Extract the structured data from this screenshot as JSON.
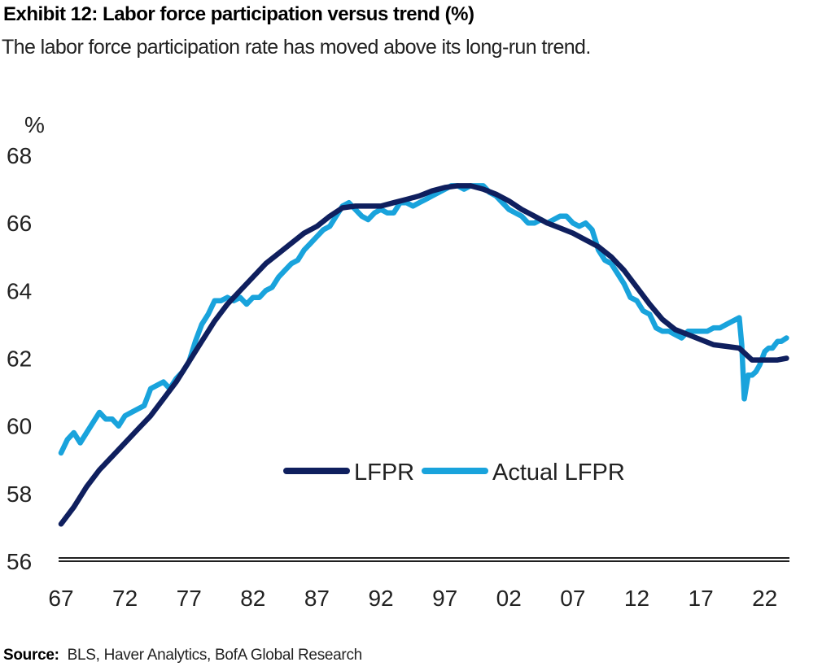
{
  "title": "Exhibit 12: Labor force participation versus trend (%)",
  "subtitle": "The labor force participation rate has moved above its long-run trend.",
  "source_label": "Source:",
  "source_text": "BLS, Haver Analytics, BofA Global Research",
  "colors": {
    "lfpr": "#0f1f5e",
    "actual": "#19a3dc",
    "axis": "#000000"
  },
  "chart_data": {
    "type": "line",
    "title": "Exhibit 12: Labor force participation versus trend (%)",
    "ylabel": "%",
    "xlabel": "",
    "ylim": [
      56,
      68
    ],
    "xlim": [
      1967,
      2023.8
    ],
    "y_ticks": [
      56,
      58,
      60,
      62,
      64,
      66,
      68
    ],
    "x_ticks": [
      {
        "year": 1967,
        "label": "67"
      },
      {
        "year": 1972,
        "label": "72"
      },
      {
        "year": 1977,
        "label": "77"
      },
      {
        "year": 1982,
        "label": "82"
      },
      {
        "year": 1987,
        "label": "87"
      },
      {
        "year": 1992,
        "label": "92"
      },
      {
        "year": 1997,
        "label": "97"
      },
      {
        "year": 2002,
        "label": "02"
      },
      {
        "year": 2007,
        "label": "07"
      },
      {
        "year": 2012,
        "label": "12"
      },
      {
        "year": 2017,
        "label": "17"
      },
      {
        "year": 2022,
        "label": "22"
      }
    ],
    "grid": false,
    "legend_position": "center",
    "series": [
      {
        "name": "LFPR",
        "x": [
          1967,
          1968,
          1969,
          1970,
          1971,
          1972,
          1973,
          1974,
          1975,
          1976,
          1977,
          1978,
          1979,
          1980,
          1981,
          1982,
          1983,
          1984,
          1985,
          1986,
          1987,
          1988,
          1989,
          1990,
          1991,
          1992,
          1993,
          1994,
          1995,
          1996,
          1997,
          1998,
          1999,
          2000,
          2001,
          2002,
          2003,
          2004,
          2005,
          2006,
          2007,
          2008,
          2009,
          2010,
          2011,
          2012,
          2013,
          2014,
          2015,
          2016,
          2017,
          2018,
          2019,
          2020,
          2021,
          2022,
          2023,
          2023.7
        ],
        "y": [
          57.1,
          57.6,
          58.2,
          58.7,
          59.1,
          59.5,
          59.9,
          60.3,
          60.8,
          61.3,
          61.9,
          62.5,
          63.1,
          63.6,
          64.0,
          64.4,
          64.8,
          65.1,
          65.4,
          65.7,
          65.9,
          66.2,
          66.45,
          66.5,
          66.5,
          66.5,
          66.6,
          66.7,
          66.8,
          66.95,
          67.05,
          67.1,
          67.1,
          67.0,
          66.85,
          66.65,
          66.4,
          66.2,
          66.0,
          65.85,
          65.7,
          65.5,
          65.3,
          65.0,
          64.6,
          64.1,
          63.6,
          63.15,
          62.85,
          62.7,
          62.55,
          62.4,
          62.35,
          62.3,
          61.95,
          61.95,
          61.95,
          62.0
        ]
      },
      {
        "name": "Actual LFPR",
        "x": [
          1967,
          1967.5,
          1968,
          1968.5,
          1969,
          1969.5,
          1970,
          1970.5,
          1971,
          1971.5,
          1972,
          1972.5,
          1973,
          1973.5,
          1974,
          1974.5,
          1975,
          1975.5,
          1976,
          1976.5,
          1977,
          1977.5,
          1978,
          1978.5,
          1979,
          1979.5,
          1980,
          1980.5,
          1981,
          1981.5,
          1982,
          1982.5,
          1983,
          1983.5,
          1984,
          1984.5,
          1985,
          1985.5,
          1986,
          1986.5,
          1987,
          1987.5,
          1988,
          1988.5,
          1989,
          1989.5,
          1990,
          1990.5,
          1991,
          1991.5,
          1992,
          1992.5,
          1993,
          1993.5,
          1994,
          1994.5,
          1995,
          1995.5,
          1996,
          1996.5,
          1997,
          1997.5,
          1998,
          1998.5,
          1999,
          1999.5,
          2000,
          2000.5,
          2001,
          2001.5,
          2002,
          2002.5,
          2003,
          2003.5,
          2004,
          2004.5,
          2005,
          2005.5,
          2006,
          2006.5,
          2007,
          2007.5,
          2008,
          2008.5,
          2009,
          2009.5,
          2010,
          2010.5,
          2011,
          2011.5,
          2012,
          2012.5,
          2013,
          2013.5,
          2014,
          2014.5,
          2015,
          2015.5,
          2016,
          2016.5,
          2017,
          2017.5,
          2018,
          2018.5,
          2019,
          2019.5,
          2020,
          2020.2,
          2020.4,
          2020.7,
          2021,
          2021.3,
          2021.6,
          2022,
          2022.3,
          2022.6,
          2023,
          2023.3,
          2023.7
        ],
        "y": [
          59.2,
          59.6,
          59.8,
          59.5,
          59.8,
          60.1,
          60.4,
          60.2,
          60.2,
          60.0,
          60.3,
          60.4,
          60.5,
          60.6,
          61.1,
          61.2,
          61.3,
          61.1,
          61.4,
          61.6,
          61.9,
          62.5,
          63.0,
          63.3,
          63.7,
          63.7,
          63.8,
          63.7,
          63.8,
          63.6,
          63.8,
          63.8,
          64.0,
          64.1,
          64.4,
          64.6,
          64.8,
          64.9,
          65.2,
          65.4,
          65.6,
          65.8,
          65.9,
          66.2,
          66.5,
          66.6,
          66.4,
          66.2,
          66.1,
          66.3,
          66.4,
          66.3,
          66.3,
          66.6,
          66.6,
          66.5,
          66.6,
          66.7,
          66.8,
          66.9,
          67.0,
          67.1,
          67.1,
          67.0,
          67.1,
          67.1,
          67.1,
          66.9,
          66.8,
          66.6,
          66.4,
          66.3,
          66.2,
          66.0,
          66.0,
          66.1,
          66.0,
          66.1,
          66.2,
          66.2,
          66.0,
          65.9,
          66.0,
          65.8,
          65.2,
          64.9,
          64.8,
          64.5,
          64.2,
          63.8,
          63.7,
          63.4,
          63.3,
          62.9,
          62.8,
          62.8,
          62.7,
          62.6,
          62.8,
          62.8,
          62.8,
          62.8,
          62.9,
          62.9,
          63.0,
          63.1,
          63.2,
          62.4,
          60.8,
          61.5,
          61.5,
          61.6,
          61.8,
          62.2,
          62.3,
          62.3,
          62.5,
          62.5,
          62.6
        ]
      }
    ]
  }
}
